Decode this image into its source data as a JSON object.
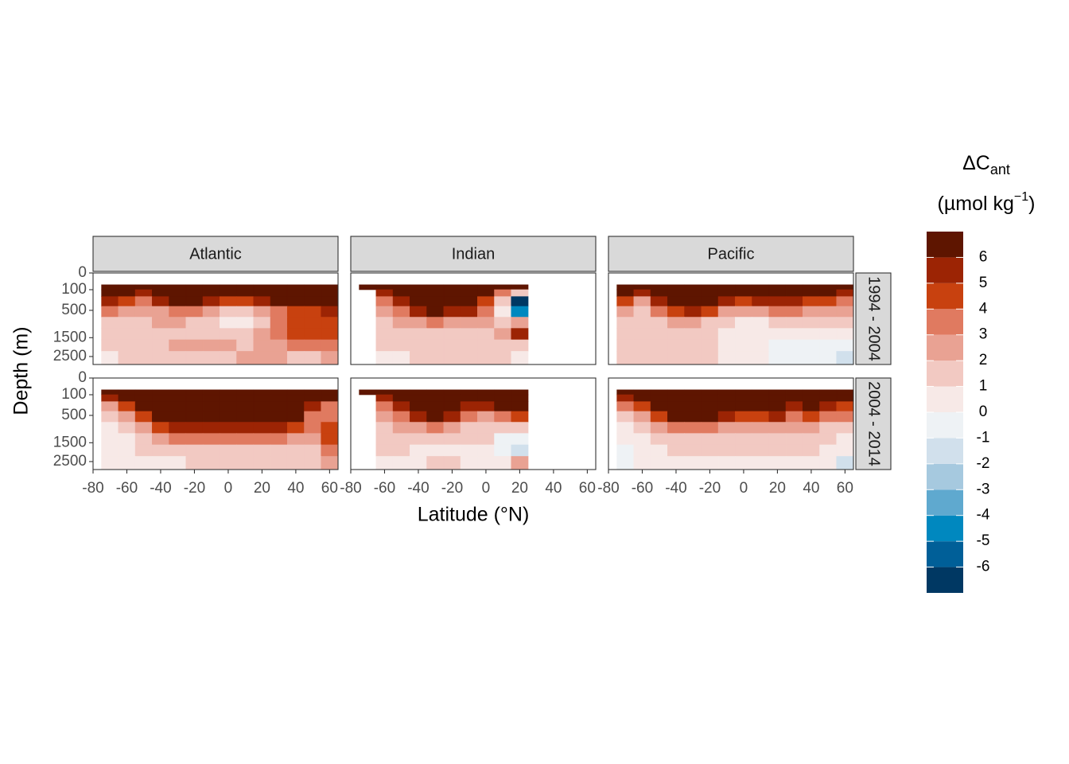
{
  "chart_data": {
    "type": "contour",
    "x_label": "Latitude (°N)",
    "y_label": "Depth (m)",
    "legend_title": "ΔC",
    "legend_title_subscript": "ant",
    "legend_unit": "(µmol kg",
    "legend_unit_superscript": "−1",
    "legend_unit_close": ")",
    "columns": [
      "Atlantic",
      "Indian",
      "Pacific"
    ],
    "rows": [
      "1994 - 2004",
      "2004 - 2014"
    ],
    "xlim": [
      -80,
      65
    ],
    "xticks": [
      -80,
      -60,
      -40,
      -20,
      0,
      20,
      40,
      60
    ],
    "ylim": [
      0,
      3000
    ],
    "yticks": [
      0,
      100,
      500,
      1500,
      2500
    ],
    "y_scale": "sqrt",
    "y_reversed": true,
    "lat_edges": [
      -75,
      -65,
      -55,
      -45,
      -35,
      -25,
      -15,
      -5,
      5,
      15,
      25,
      35,
      45,
      55,
      65
    ],
    "depth_edges": [
      50,
      100,
      200,
      400,
      700,
      1100,
      1600,
      2200,
      3000
    ],
    "levels": [
      -7,
      -6,
      -5,
      -4,
      -3,
      -2,
      -1,
      0,
      1,
      2,
      3,
      4,
      5,
      6,
      7
    ],
    "level_ticks": [
      -6,
      -5,
      -4,
      -3,
      -2,
      -1,
      0,
      1,
      2,
      3,
      4,
      5,
      6
    ],
    "colors": [
      "#003863",
      "#005f98",
      "#0088bf",
      "#5fa9cf",
      "#a6c9df",
      "#d1e0ec",
      "#eef2f5",
      "#f7e9e7",
      "#f2c9c2",
      "#e9a293",
      "#e07a60",
      "#c8410f",
      "#9c2404",
      "#5e1500"
    ],
    "panels": [
      {
        "column": 0,
        "row": 0,
        "values": [
          [
            6.5,
            6.5,
            6.5,
            6.5,
            6.5,
            6.5,
            6.5,
            6.5,
            6.5,
            6.5,
            6.5,
            6.5,
            6.5,
            6.5
          ],
          [
            6.5,
            6.5,
            5.5,
            6.5,
            6.5,
            6.5,
            6.5,
            6.5,
            6.5,
            6.5,
            6.5,
            6.5,
            6.5,
            6.5
          ],
          [
            5.5,
            4.5,
            3.5,
            5,
            6,
            6,
            5,
            4.5,
            4.5,
            5,
            6,
            6,
            6,
            6.5
          ],
          [
            3,
            2.5,
            2,
            2.5,
            3.5,
            3,
            2,
            1.5,
            1.5,
            2.5,
            3.5,
            4,
            4.5,
            5
          ],
          [
            1.5,
            1.5,
            1.5,
            2,
            2,
            1.5,
            1,
            0.5,
            0.5,
            1.5,
            3,
            4.5,
            4.5,
            4.5
          ],
          [
            1.5,
            1.5,
            1.5,
            1.5,
            1.5,
            1.5,
            1.5,
            1.5,
            1.5,
            2,
            3,
            4.5,
            4.5,
            4.5
          ],
          [
            1.5,
            1.5,
            1.5,
            1.5,
            2.5,
            2.5,
            2.5,
            2.5,
            1.5,
            2,
            2.5,
            3,
            3.5,
            3
          ],
          [
            0.5,
            1.5,
            1.5,
            1.5,
            1.5,
            1.5,
            1.5,
            1.5,
            2.5,
            2.5,
            2.5,
            1.5,
            1.5,
            2.5
          ]
        ]
      },
      {
        "column": 0,
        "row": 1,
        "values": [
          [
            6.5,
            6.5,
            6.5,
            6.5,
            6.5,
            6.5,
            6.5,
            6.5,
            6.5,
            6.5,
            6.5,
            6.5,
            6.5,
            6.5
          ],
          [
            5.5,
            6,
            6.5,
            6.5,
            6.5,
            6.5,
            6.5,
            6.5,
            6.5,
            6.5,
            6.5,
            6.5,
            6.5,
            6.5
          ],
          [
            2.5,
            4.5,
            6.5,
            6.5,
            6.5,
            6.5,
            6.5,
            6.5,
            6.5,
            6.5,
            6.5,
            6.5,
            5,
            3.5
          ],
          [
            1.5,
            2.5,
            4.5,
            6.5,
            6.5,
            6.5,
            6.5,
            6.5,
            6.5,
            6.5,
            6.5,
            6,
            3.5,
            3.5
          ],
          [
            0.5,
            1.5,
            2.5,
            4.5,
            5,
            5.5,
            5.5,
            5.5,
            5.5,
            5.5,
            5,
            4.5,
            3,
            4
          ],
          [
            0.5,
            0.5,
            1.5,
            2.5,
            3.5,
            3.5,
            3.5,
            3.5,
            3.5,
            3.5,
            3,
            2.5,
            2.5,
            4
          ],
          [
            0.5,
            0.5,
            1.5,
            1.5,
            1.5,
            1.5,
            1.5,
            1.5,
            1.5,
            1.5,
            1.5,
            1.5,
            1.5,
            3.5
          ],
          [
            0.5,
            0.5,
            0.5,
            0.5,
            0.5,
            1.5,
            1.5,
            1.5,
            1.5,
            1.5,
            1.5,
            1.5,
            1.5,
            2.5
          ]
        ]
      },
      {
        "column": 1,
        "row": 0,
        "values": [
          [
            6.5,
            6.5,
            6.5,
            6.5,
            6.5,
            6.5,
            6.5,
            6.5,
            6.5,
            6.5,
            null,
            null,
            null,
            null
          ],
          [
            null,
            5,
            6.5,
            6.5,
            6.5,
            6.5,
            6.5,
            6.5,
            3,
            1,
            null,
            null,
            null,
            null
          ],
          [
            null,
            3.5,
            5.5,
            6.5,
            6.5,
            6.5,
            6.5,
            4.5,
            1,
            -6.5,
            null,
            null,
            null,
            null
          ],
          [
            null,
            2.5,
            3.5,
            5,
            6,
            5.5,
            5,
            3,
            0.5,
            -4.5,
            null,
            null,
            null,
            null
          ],
          [
            null,
            1.5,
            2,
            2.5,
            3,
            2.5,
            2.5,
            2.5,
            1.5,
            2.5,
            null,
            null,
            null,
            null
          ],
          [
            null,
            1.5,
            1.5,
            1.5,
            1.5,
            1.5,
            1.5,
            1.5,
            2.5,
            5.5,
            null,
            null,
            null,
            null
          ],
          [
            null,
            1.5,
            1.5,
            1.5,
            1.5,
            1.5,
            1.5,
            1.5,
            1.5,
            1.5,
            null,
            null,
            null,
            null
          ],
          [
            null,
            0.5,
            0.5,
            1.5,
            1.5,
            1.5,
            1.5,
            1.5,
            1.5,
            0.5,
            null,
            null,
            null,
            null
          ]
        ]
      },
      {
        "column": 1,
        "row": 1,
        "values": [
          [
            6.5,
            6.5,
            6.5,
            6.5,
            6.5,
            6.5,
            6.5,
            6.5,
            6.5,
            6.5,
            null,
            null,
            null,
            null
          ],
          [
            null,
            5,
            6.5,
            6.5,
            6.5,
            6.5,
            6.5,
            6.5,
            6.5,
            6.5,
            null,
            null,
            null,
            null
          ],
          [
            null,
            3.5,
            5.5,
            6.5,
            6.5,
            6.5,
            5.5,
            5,
            6,
            6.5,
            null,
            null,
            null,
            null
          ],
          [
            null,
            2.5,
            3.5,
            5.5,
            6,
            5,
            3.5,
            2.5,
            3.5,
            4.5,
            null,
            null,
            null,
            null
          ],
          [
            null,
            1.5,
            2.5,
            2.5,
            3,
            2.5,
            1.5,
            1.5,
            1.5,
            1.5,
            null,
            null,
            null,
            null
          ],
          [
            null,
            1.5,
            1.5,
            1.5,
            1.5,
            1.5,
            1.5,
            1.5,
            -0.5,
            -0.5,
            null,
            null,
            null,
            null
          ],
          [
            null,
            1.5,
            1.5,
            0.5,
            0.5,
            0.5,
            0.5,
            0.5,
            -0.5,
            -1.5,
            null,
            null,
            null,
            null
          ],
          [
            null,
            0.5,
            0.5,
            0.5,
            1.5,
            1.5,
            0.5,
            0.5,
            0.5,
            2.5,
            null,
            null,
            null,
            null
          ]
        ]
      },
      {
        "column": 2,
        "row": 0,
        "values": [
          [
            6.5,
            6.5,
            6.5,
            6.5,
            6.5,
            6.5,
            6.5,
            6.5,
            6.5,
            6.5,
            6.5,
            6.5,
            6.5,
            6.5
          ],
          [
            6.5,
            5.5,
            6.5,
            6.5,
            6.5,
            6.5,
            6.5,
            6.5,
            6.5,
            6.5,
            6.5,
            6.5,
            6.5,
            5.5
          ],
          [
            4.5,
            2.5,
            5.5,
            6.5,
            6.5,
            6,
            5,
            4.5,
            5,
            5.5,
            5,
            4.5,
            4,
            3.5
          ],
          [
            2.5,
            1.5,
            3,
            4.5,
            5,
            4,
            2.5,
            2,
            2.5,
            3.5,
            3,
            2.5,
            2.5,
            2.5
          ],
          [
            1.5,
            1.5,
            1.5,
            2.5,
            2.5,
            1.5,
            1.5,
            0.5,
            0.5,
            1.5,
            1.5,
            1.5,
            1.5,
            1.5
          ],
          [
            1.5,
            1.5,
            1.5,
            1.5,
            1.5,
            1.5,
            0.5,
            0.5,
            0.5,
            0.5,
            0.5,
            0.5,
            0.5,
            0.5
          ],
          [
            1.5,
            1.5,
            1.5,
            1.5,
            1.5,
            1.5,
            0.5,
            0.5,
            0.5,
            -0.5,
            -0.5,
            -0.5,
            -0.5,
            -0.5
          ],
          [
            1.5,
            1.5,
            1.5,
            1.5,
            1.5,
            1.5,
            0.5,
            0.5,
            0.5,
            -0.5,
            -0.5,
            -0.5,
            -0.5,
            -1.5
          ]
        ]
      },
      {
        "column": 2,
        "row": 1,
        "values": [
          [
            6.5,
            6.5,
            6.5,
            6.5,
            6.5,
            6.5,
            6.5,
            6.5,
            6.5,
            6.5,
            6.5,
            6.5,
            6.5,
            6.5
          ],
          [
            5.5,
            6.5,
            6.5,
            6.5,
            6.5,
            6.5,
            6.5,
            6.5,
            6.5,
            6.5,
            6.5,
            6.5,
            6.5,
            6
          ],
          [
            3.5,
            4.5,
            6.5,
            6.5,
            6.5,
            6.5,
            6.5,
            6.5,
            6.5,
            6.5,
            5.5,
            6,
            5.5,
            4.5
          ],
          [
            1.5,
            2.5,
            4.5,
            6,
            6.5,
            6,
            5,
            4,
            4.5,
            5.5,
            3.5,
            4,
            3.5,
            3
          ],
          [
            0.5,
            1.5,
            2.5,
            3.5,
            3.5,
            3,
            2.5,
            2,
            2.5,
            2.5,
            2,
            2,
            1.5,
            1.5
          ],
          [
            0.5,
            0.5,
            1.5,
            1.5,
            1.5,
            1.5,
            1.5,
            1.5,
            1.5,
            1.5,
            1.5,
            1.5,
            1.5,
            0.5
          ],
          [
            -0.5,
            0.5,
            0.5,
            1.5,
            1.5,
            1.5,
            1.5,
            1.5,
            1.5,
            1.5,
            1.5,
            1.5,
            0.5,
            0.5
          ],
          [
            -0.5,
            0.5,
            0.5,
            0.5,
            0.5,
            0.5,
            0.5,
            0.5,
            0.5,
            0.5,
            0.5,
            0.5,
            0.5,
            -1.5
          ]
        ]
      }
    ]
  }
}
